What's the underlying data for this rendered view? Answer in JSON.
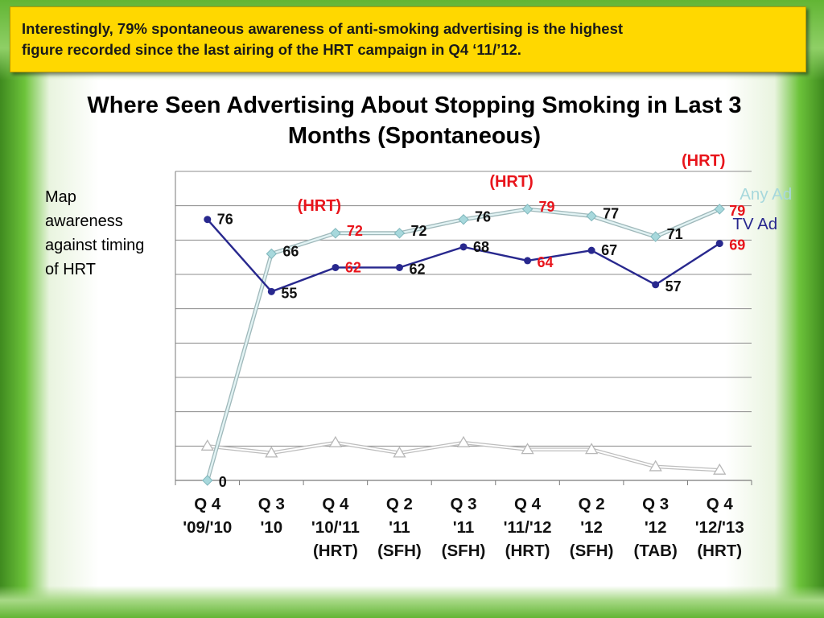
{
  "banner": {
    "line1": "Interestingly, 79% spontaneous awareness of anti-smoking advertising is the highest",
    "line2": "figure recorded since the last airing of the HRT campaign in Q4 ‘11/’12."
  },
  "side_note": {
    "lines": [
      "Map",
      "awareness",
      "against timing",
      "of HRT"
    ]
  },
  "colors": {
    "hrt_highlight": "#e8141b",
    "any_ad": "#a7d8dc",
    "tv_ad": "#28288e",
    "secondary": "#d0d0d0",
    "label_default": "#111111"
  },
  "chart_data": {
    "type": "line",
    "title_lines": [
      "Where Seen Advertising About Stopping Smoking in Last 3",
      "Months (Spontaneous)"
    ],
    "ylim": [
      0,
      90
    ],
    "grid": true,
    "categories": [
      [
        "Q 4",
        "'09/'10",
        ""
      ],
      [
        "Q 3",
        "'10",
        ""
      ],
      [
        "Q 4",
        "'10/'11",
        "(HRT)"
      ],
      [
        "Q 2",
        "'11",
        "(SFH)"
      ],
      [
        "Q 3",
        "'11",
        "(SFH)"
      ],
      [
        "Q 4",
        "'11/'12",
        "(HRT)"
      ],
      [
        "Q 2",
        "'12",
        "(SFH)"
      ],
      [
        "Q 3",
        "'12",
        "(TAB)"
      ],
      [
        "Q 4",
        "'12/'13",
        "(HRT)"
      ]
    ],
    "hrt_points": [
      2,
      5,
      8
    ],
    "hrt_annotation": "(HRT)",
    "series": [
      {
        "name": "Any Ad",
        "values": [
          0,
          66,
          72,
          72,
          76,
          79,
          77,
          71,
          79
        ]
      },
      {
        "name": "TV Ad",
        "values": [
          76,
          55,
          62,
          62,
          68,
          64,
          67,
          57,
          69
        ]
      },
      {
        "values": [
          10,
          8,
          11,
          8,
          11,
          9,
          9,
          4,
          3
        ]
      }
    ]
  }
}
